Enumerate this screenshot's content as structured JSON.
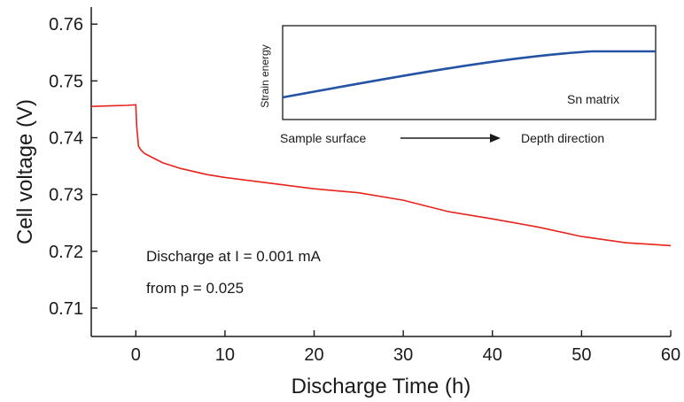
{
  "chart_data": {
    "type": "line",
    "xlabel": "Discharge Time (h)",
    "ylabel": "Cell voltage (V)",
    "xlim": [
      -5,
      60
    ],
    "ylim": [
      0.705,
      0.763
    ],
    "xticks": [
      0,
      10,
      20,
      30,
      40,
      50,
      60
    ],
    "yticks": [
      0.71,
      0.72,
      0.73,
      0.74,
      0.75,
      0.76
    ],
    "xtick_labels": [
      "0",
      "10",
      "20",
      "30",
      "40",
      "50",
      "60"
    ],
    "ytick_labels": [
      "0.71",
      "0.72",
      "0.73",
      "0.74",
      "0.75",
      "0.76"
    ],
    "series": [
      {
        "color": "#e8221c",
        "x": [
          -5,
          -3,
          -1,
          0,
          0.1,
          0.3,
          0.6,
          1,
          2,
          3,
          5,
          8,
          10,
          15,
          20,
          25,
          30,
          35,
          40,
          45,
          50,
          55,
          58,
          60
        ],
        "y": [
          0.7455,
          0.7456,
          0.7457,
          0.7458,
          0.742,
          0.7385,
          0.7378,
          0.7372,
          0.7364,
          0.7356,
          0.7346,
          0.7335,
          0.733,
          0.732,
          0.731,
          0.7303,
          0.729,
          0.727,
          0.7257,
          0.7243,
          0.7226,
          0.7215,
          0.7212,
          0.721
        ]
      }
    ],
    "annotations": [
      "Discharge at I = 0.001 mA",
      "from p = 0.025"
    ],
    "inset": {
      "ylabel": "Strain energy",
      "label": "Sn matrix",
      "x_left_label": "Sample surface",
      "x_right_label": "Depth direction",
      "line_color": "#2452a4"
    }
  }
}
